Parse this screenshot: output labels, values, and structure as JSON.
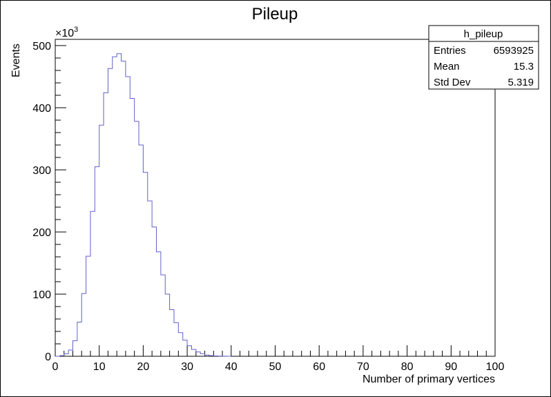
{
  "chart_data": {
    "type": "histogram",
    "title": "Pileup",
    "xlabel": "Number of primary vertices",
    "ylabel": "Events",
    "y_multiplier_label": "×10",
    "y_multiplier_exponent": "3",
    "xlim": [
      0,
      100
    ],
    "ylim": [
      0,
      510
    ],
    "x_ticks": [
      0,
      10,
      20,
      30,
      40,
      50,
      60,
      70,
      80,
      90,
      100
    ],
    "y_ticks": [
      0,
      100,
      200,
      300,
      400,
      500
    ],
    "bin_width": 1,
    "x": [
      0,
      1,
      2,
      3,
      4,
      5,
      6,
      7,
      8,
      9,
      10,
      11,
      12,
      13,
      14,
      15,
      16,
      17,
      18,
      19,
      20,
      21,
      22,
      23,
      24,
      25,
      26,
      27,
      28,
      29,
      30,
      31,
      32,
      33,
      34,
      35,
      36,
      37,
      38,
      39
    ],
    "values": [
      0,
      1,
      4,
      10,
      25,
      55,
      101,
      161,
      233,
      305,
      372,
      424,
      463,
      482,
      487,
      475,
      450,
      415,
      378,
      340,
      296,
      250,
      208,
      168,
      131,
      100,
      75,
      54,
      38,
      26,
      17,
      11,
      7,
      4,
      2,
      1,
      0.5,
      0.3,
      0.2,
      0
    ],
    "line_color": "#6060c8",
    "series": [
      {
        "name": "h_pileup"
      }
    ],
    "stats_box": {
      "name": "h_pileup",
      "rows": [
        {
          "label": "Entries",
          "value": "6593925"
        },
        {
          "label": "Mean",
          "value": "15.3"
        },
        {
          "label": "Std Dev",
          "value": "5.319"
        }
      ]
    }
  }
}
